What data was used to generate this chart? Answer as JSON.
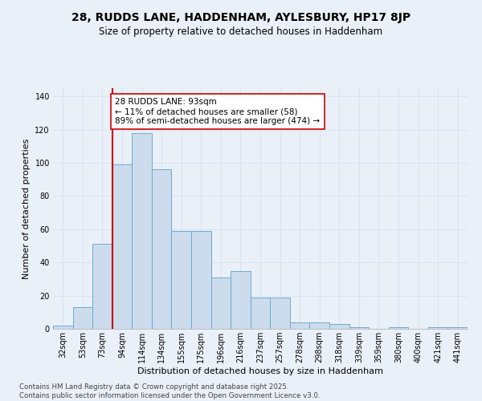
{
  "title_line1": "28, RUDDS LANE, HADDENHAM, AYLESBURY, HP17 8JP",
  "title_line2": "Size of property relative to detached houses in Haddenham",
  "xlabel": "Distribution of detached houses by size in Haddenham",
  "ylabel": "Number of detached properties",
  "categories": [
    "32sqm",
    "53sqm",
    "73sqm",
    "94sqm",
    "114sqm",
    "134sqm",
    "155sqm",
    "175sqm",
    "196sqm",
    "216sqm",
    "237sqm",
    "257sqm",
    "278sqm",
    "298sqm",
    "318sqm",
    "339sqm",
    "359sqm",
    "380sqm",
    "400sqm",
    "421sqm",
    "441sqm"
  ],
  "values": [
    2,
    13,
    51,
    99,
    118,
    96,
    59,
    59,
    31,
    35,
    19,
    19,
    4,
    4,
    3,
    1,
    0,
    1,
    0,
    1,
    1
  ],
  "bar_color": "#ccdcec",
  "bar_edge_color": "#6aaad4",
  "bar_edge_width": 0.7,
  "vline_x": 2.5,
  "vline_color": "#cc0000",
  "annotation_text": "28 RUDDS LANE: 93sqm\n← 11% of detached houses are smaller (58)\n89% of semi-detached houses are larger (474) →",
  "annotation_box_color": "#ffffff",
  "annotation_box_edge": "#cc0000",
  "ylim": [
    0,
    145
  ],
  "yticks": [
    0,
    20,
    40,
    60,
    80,
    100,
    120,
    140
  ],
  "background_color": "#eaf0f8",
  "grid_color": "#d8e4f0",
  "footer_line1": "Contains HM Land Registry data © Crown copyright and database right 2025.",
  "footer_line2": "Contains public sector information licensed under the Open Government Licence v3.0.",
  "title_fontsize": 10,
  "subtitle_fontsize": 8.5,
  "axis_label_fontsize": 8,
  "tick_fontsize": 7,
  "annotation_fontsize": 7.5
}
